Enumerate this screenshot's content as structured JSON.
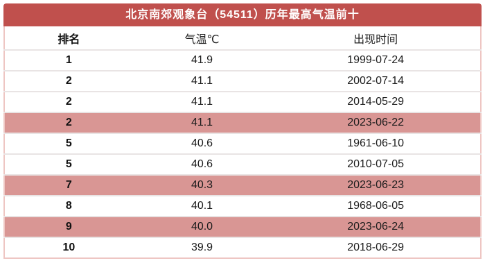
{
  "title": "北京南郊观象台（54511）历年最高气温前十",
  "columns": [
    {
      "label": "排名"
    },
    {
      "label": "气温℃"
    },
    {
      "label": "出现时间"
    }
  ],
  "rows": [
    {
      "rank": "1",
      "temp": "41.9",
      "date": "1999-07-24",
      "highlighted": false
    },
    {
      "rank": "2",
      "temp": "41.1",
      "date": "2002-07-14",
      "highlighted": false
    },
    {
      "rank": "2",
      "temp": "41.1",
      "date": "2014-05-29",
      "highlighted": false
    },
    {
      "rank": "2",
      "temp": "41.1",
      "date": "2023-06-22",
      "highlighted": true
    },
    {
      "rank": "5",
      "temp": "40.6",
      "date": "1961-06-10",
      "highlighted": false
    },
    {
      "rank": "5",
      "temp": "40.6",
      "date": "2010-07-05",
      "highlighted": false
    },
    {
      "rank": "7",
      "temp": "40.3",
      "date": "2023-06-23",
      "highlighted": true
    },
    {
      "rank": "8",
      "temp": "40.1",
      "date": "1968-06-05",
      "highlighted": false
    },
    {
      "rank": "9",
      "temp": "40.0",
      "date": "2023-06-24",
      "highlighted": true
    },
    {
      "rank": "10",
      "temp": "39.9",
      "date": "2018-06-29",
      "highlighted": false
    }
  ],
  "colors": {
    "header_red": "#c0504d",
    "highlight_pink": "#d99694",
    "border_pink": "#eec6c3",
    "separator": "#e9e4e4"
  },
  "chart_data": {
    "type": "table",
    "title": "北京南郊观象台（54511）历年最高气温前十",
    "columns": [
      "排名",
      "气温℃",
      "出现时间"
    ],
    "rows": [
      [
        "1",
        41.9,
        "1999-07-24"
      ],
      [
        "2",
        41.1,
        "2002-07-14"
      ],
      [
        "2",
        41.1,
        "2014-05-29"
      ],
      [
        "2",
        41.1,
        "2023-06-22"
      ],
      [
        "5",
        40.6,
        "1961-06-10"
      ],
      [
        "5",
        40.6,
        "2010-07-05"
      ],
      [
        "7",
        40.3,
        "2023-06-23"
      ],
      [
        "8",
        40.1,
        "1968-06-05"
      ],
      [
        "9",
        40.0,
        "2023-06-24"
      ],
      [
        "10",
        39.9,
        "2018-06-29"
      ]
    ],
    "highlighted_row_indices": [
      3,
      6,
      8
    ]
  }
}
